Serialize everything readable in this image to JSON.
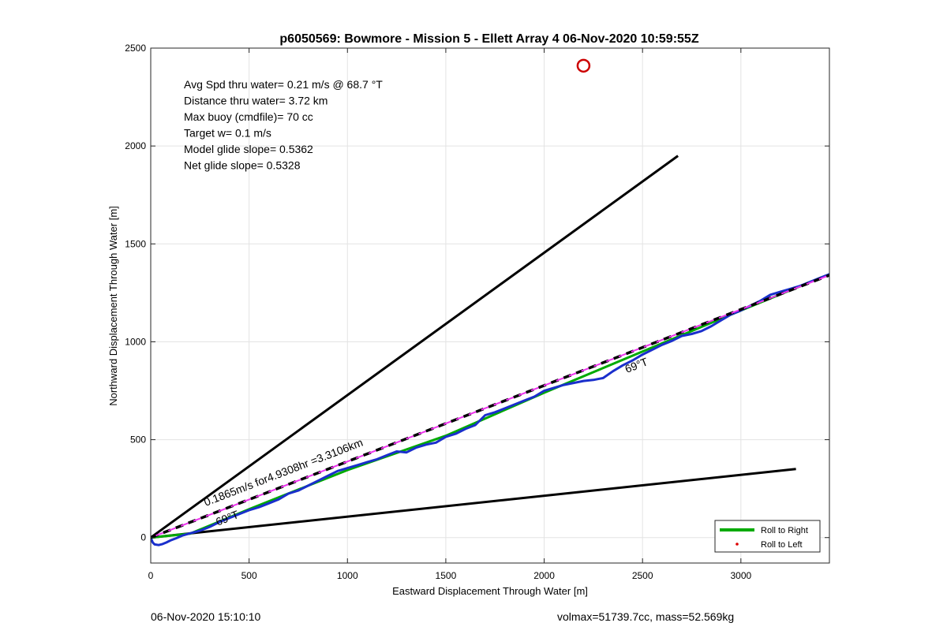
{
  "chart_data": {
    "type": "line",
    "title": "p6050569: Bowmore - Mission 5 - Ellett Array 4 06-Nov-2020 10:59:55Z",
    "xlabel": "Eastward Displacement Through Water [m]",
    "ylabel": "Northward Displacement Through Water [m]",
    "xlim": [
      0,
      3450
    ],
    "ylim": [
      -130,
      2500
    ],
    "xticks": [
      0,
      500,
      1000,
      1500,
      2000,
      2500,
      3000
    ],
    "yticks": [
      0,
      500,
      1000,
      1500,
      2000,
      2500
    ],
    "grid": true,
    "legend_position": "bottom-right",
    "legend": [
      {
        "name": "Roll to Right",
        "style": "line",
        "color": "#00aa00"
      },
      {
        "name": "Roll to Left",
        "style": "dot",
        "color": "#dd0000"
      }
    ],
    "stats": [
      "Avg Spd thru water=  0.21 m/s @  68.7 °T",
      "Distance thru water=  3.72 km",
      "Max buoy (cmdfile)= 70 cc",
      "Target w= 0.1 m/s",
      "Model glide slope= 0.5362",
      "Net glide slope= 0.5328"
    ],
    "annotations": [
      {
        "text": "0.1865m/s for4.9308hr =3.3106km",
        "x": 280,
        "y": 160
      },
      {
        "text": "69°T",
        "x": 340,
        "y": 60
      },
      {
        "text": "69°T",
        "x": 2420,
        "y": 840
      }
    ],
    "lines": [
      {
        "name": "upper-bound",
        "color": "#000000",
        "x": [
          0,
          2680
        ],
        "y": [
          0,
          1950
        ]
      },
      {
        "name": "lower-bound",
        "color": "#000000",
        "x": [
          0,
          3280
        ],
        "y": [
          0,
          350
        ]
      },
      {
        "name": "course-line",
        "color": "#000000",
        "dash": true,
        "x": [
          0,
          3450
        ],
        "y": [
          0,
          1340
        ]
      }
    ],
    "track_blue": {
      "color": "#1a2fcc",
      "x": [
        0,
        10,
        20,
        40,
        60,
        80,
        100,
        130,
        160,
        200,
        250,
        300,
        350,
        400,
        450,
        500,
        550,
        600,
        650,
        700,
        750,
        800,
        850,
        900,
        950,
        1000,
        1050,
        1100,
        1150,
        1200,
        1250,
        1300,
        1350,
        1400,
        1450,
        1500,
        1550,
        1600,
        1650,
        1700,
        1750,
        1800,
        1850,
        1900,
        1950,
        2000,
        2050,
        2100,
        2150,
        2200,
        2250,
        2300,
        2350,
        2400,
        2450,
        2500,
        2550,
        2600,
        2650,
        2700,
        2750,
        2800,
        2850,
        2900,
        2950,
        3000,
        3050,
        3100,
        3150,
        3200,
        3250,
        3300,
        3350,
        3400,
        3450
      ],
      "y": [
        0,
        -25,
        -35,
        -38,
        -33,
        -25,
        -15,
        -3,
        10,
        22,
        35,
        55,
        80,
        100,
        120,
        140,
        155,
        175,
        195,
        225,
        240,
        265,
        290,
        315,
        340,
        355,
        370,
        385,
        400,
        420,
        440,
        435,
        460,
        475,
        485,
        515,
        530,
        555,
        575,
        625,
        640,
        660,
        680,
        700,
        720,
        750,
        765,
        780,
        790,
        800,
        805,
        815,
        850,
        880,
        905,
        935,
        960,
        985,
        1005,
        1030,
        1040,
        1055,
        1080,
        1110,
        1140,
        1160,
        1185,
        1210,
        1240,
        1255,
        1270,
        1285,
        1305,
        1325,
        1345
      ]
    },
    "track_green": {
      "color": "#00aa00",
      "x": [
        0,
        200,
        500,
        1000,
        1500,
        2000,
        2500,
        3000,
        3450
      ],
      "y": [
        0,
        20,
        145,
        345,
        520,
        740,
        950,
        1160,
        1345
      ]
    },
    "marker": {
      "name": "target-circle",
      "color": "#cc0000",
      "x": 2200,
      "y": 2410
    }
  },
  "footer": {
    "left": "06-Nov-2020 15:10:10",
    "right": "volmax=51739.7cc, mass=52.569kg"
  }
}
